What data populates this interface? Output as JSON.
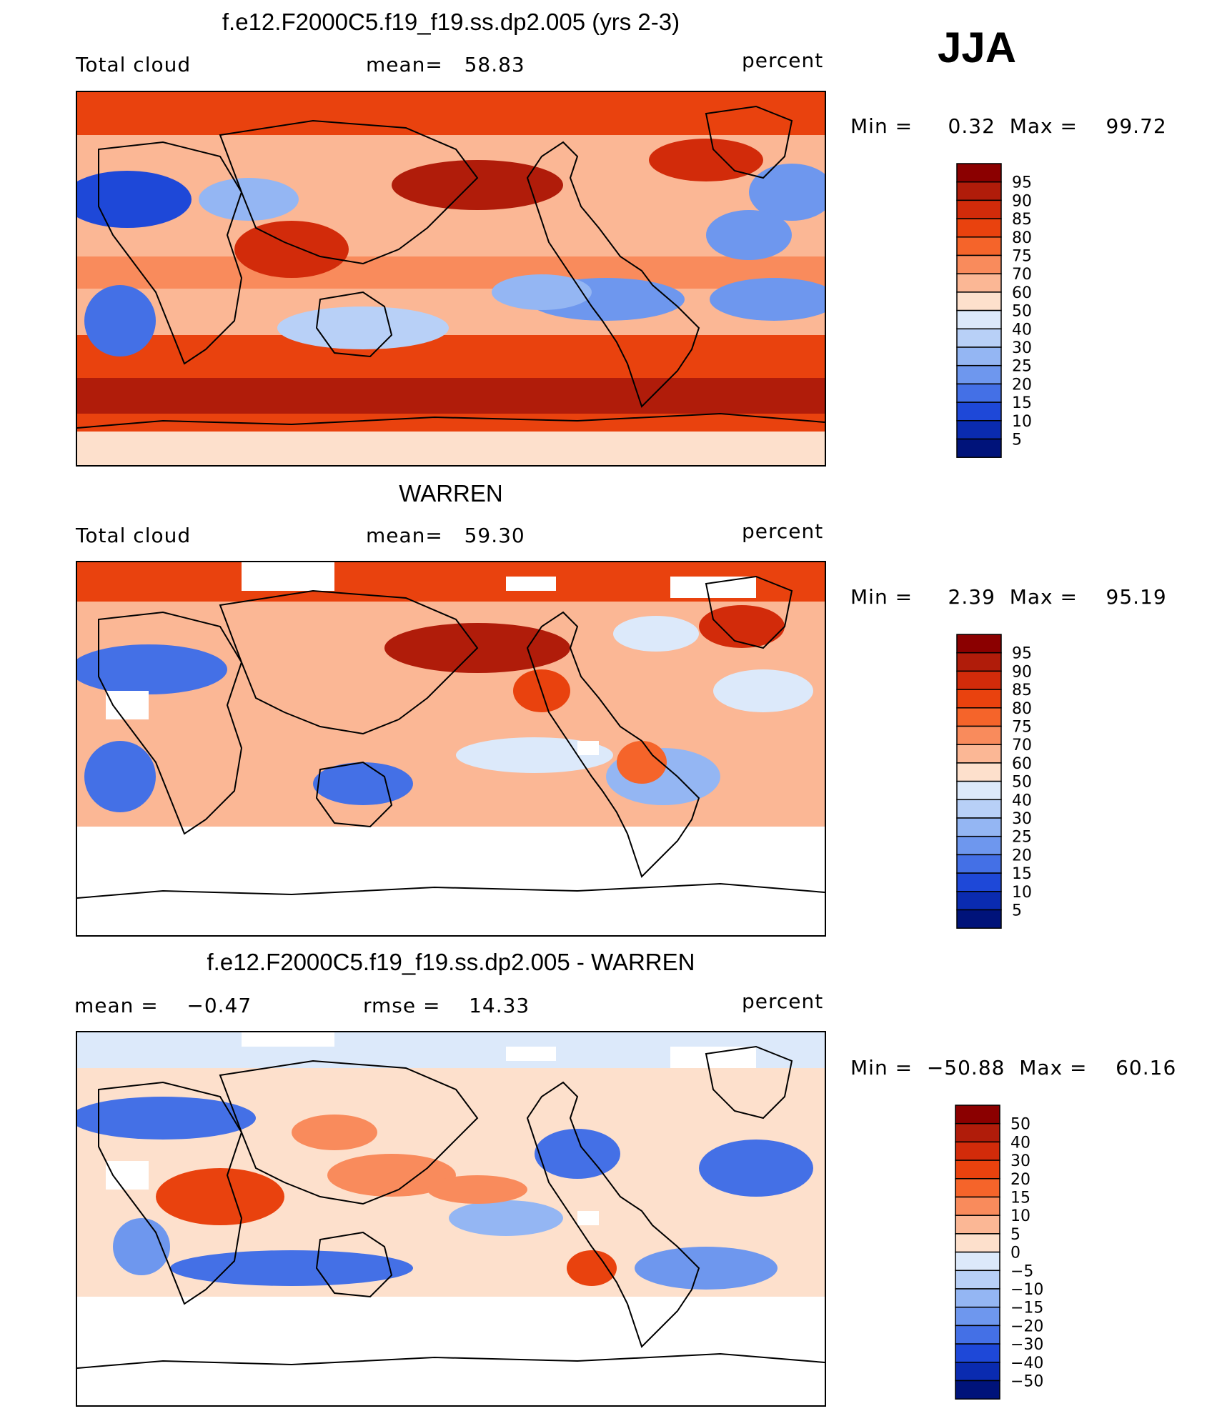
{
  "season": "JJA",
  "panels": [
    {
      "title": "f.e12.F2000C5.f19_f19.ss.dp2.005 (yrs 2-3)",
      "left": "Total cloud",
      "center": "mean=   58.83",
      "right": "percent",
      "minmax": "Min =     0.32  Max =    99.72",
      "type": "model",
      "colorbar": {
        "labels": [
          "95",
          "90",
          "85",
          "80",
          "75",
          "70",
          "60",
          "50",
          "40",
          "30",
          "25",
          "20",
          "15",
          "10",
          "5"
        ],
        "colors": [
          "#8b0000",
          "#b01c0a",
          "#d22b0a",
          "#e9420e",
          "#f5642a",
          "#f98b5c",
          "#fbb795",
          "#fde0cc",
          "#dce9fa",
          "#b8d0f7",
          "#94b6f3",
          "#6e97ee",
          "#4470e6",
          "#1e48d8",
          "#0a2bb0",
          "#00137a"
        ]
      }
    },
    {
      "title": "WARREN",
      "left": "Total cloud",
      "center": "mean=   59.30",
      "right": "percent",
      "minmax": "Min =     2.39  Max =    95.19",
      "type": "obs",
      "colorbar": {
        "labels": [
          "95",
          "90",
          "85",
          "80",
          "75",
          "70",
          "60",
          "50",
          "40",
          "30",
          "25",
          "20",
          "15",
          "10",
          "5"
        ],
        "colors": [
          "#8b0000",
          "#b01c0a",
          "#d22b0a",
          "#e9420e",
          "#f5642a",
          "#f98b5c",
          "#fbb795",
          "#fde0cc",
          "#dce9fa",
          "#b8d0f7",
          "#94b6f3",
          "#6e97ee",
          "#4470e6",
          "#1e48d8",
          "#0a2bb0",
          "#00137a"
        ]
      }
    },
    {
      "title": "f.e12.F2000C5.f19_f19.ss.dp2.005 - WARREN",
      "left": "mean =    −0.47",
      "center": "rmse =    14.33",
      "right": "percent",
      "minmax": "Min =  −50.88  Max =    60.16",
      "type": "diff",
      "colorbar": {
        "labels": [
          "50",
          "40",
          "30",
          "20",
          "15",
          "10",
          "5",
          "0",
          "−5",
          "−10",
          "−15",
          "−20",
          "−30",
          "−40",
          "−50"
        ],
        "colors": [
          "#8b0000",
          "#b01c0a",
          "#d22b0a",
          "#e9420e",
          "#f5642a",
          "#f98b5c",
          "#fbb795",
          "#fde0cc",
          "#dce9fa",
          "#b8d0f7",
          "#94b6f3",
          "#6e97ee",
          "#4470e6",
          "#1e48d8",
          "#0a2bb0",
          "#00137a"
        ]
      }
    }
  ]
}
